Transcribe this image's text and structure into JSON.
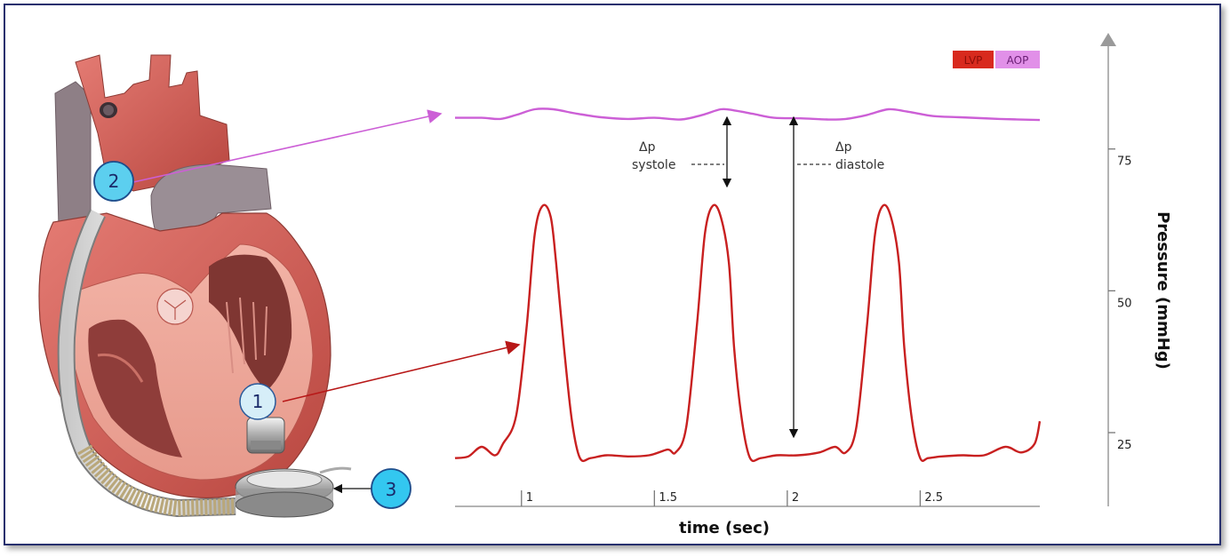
{
  "chart_data": {
    "type": "line",
    "xlabel": "time (sec)",
    "ylabel": "Pressure (mmHg)",
    "x_ticks": [
      1,
      1.5,
      2,
      2.5
    ],
    "y_ticks": [
      25,
      50,
      75
    ],
    "xlim": [
      0.75,
      2.95
    ],
    "ylim": [
      12,
      95
    ],
    "legend": {
      "position": "top-right"
    },
    "series": [
      {
        "name": "LVP",
        "color": "#c82020",
        "x": [
          0.75,
          0.8,
          0.85,
          0.9,
          0.93,
          0.98,
          1.02,
          1.05,
          1.08,
          1.11,
          1.13,
          1.16,
          1.19,
          1.22,
          1.26,
          1.32,
          1.4,
          1.48,
          1.55,
          1.58,
          1.62,
          1.66,
          1.69,
          1.72,
          1.75,
          1.78,
          1.8,
          1.83,
          1.86,
          1.9,
          1.96,
          2.04,
          2.12,
          2.18,
          2.22,
          2.26,
          2.3,
          2.33,
          2.36,
          2.39,
          2.42,
          2.44,
          2.47,
          2.5,
          2.53,
          2.58,
          2.66,
          2.74,
          2.82,
          2.88,
          2.93,
          2.95
        ],
        "y": [
          20.5,
          20.8,
          22.5,
          21,
          23,
          28,
          44,
          60,
          65,
          63,
          55,
          40,
          27,
          20.5,
          20.5,
          21,
          20.8,
          21,
          22,
          21.5,
          26,
          44,
          60,
          65,
          63,
          55,
          40,
          27,
          20.5,
          20.5,
          21,
          21,
          21.5,
          22.5,
          21.5,
          26,
          44,
          60,
          65,
          63,
          55,
          40,
          27,
          20.5,
          20.5,
          20.8,
          21,
          21,
          22.5,
          21.5,
          23,
          27
        ]
      },
      {
        "name": "AOP",
        "color": "#cc5fd6",
        "x": [
          0.75,
          0.85,
          0.92,
          0.98,
          1.05,
          1.12,
          1.2,
          1.3,
          1.4,
          1.5,
          1.6,
          1.68,
          1.75,
          1.8,
          1.87,
          1.95,
          2.05,
          2.15,
          2.22,
          2.3,
          2.38,
          2.45,
          2.55,
          2.65,
          2.8,
          2.95
        ],
        "y": [
          80.5,
          80.5,
          80.3,
          81,
          82,
          82,
          81.3,
          80.6,
          80.3,
          80.5,
          80.2,
          81,
          82,
          81.8,
          81.2,
          80.5,
          80.4,
          80.2,
          80.3,
          81,
          82,
          81.6,
          80.8,
          80.6,
          80.3,
          80.1
        ]
      }
    ],
    "annotations": [
      {
        "symbol": "Δp",
        "label": "systole"
      },
      {
        "symbol": "Δp",
        "label": "diastole"
      }
    ]
  },
  "callouts": [
    {
      "number": "1",
      "target": "LVP"
    },
    {
      "number": "2",
      "target": "AOP"
    },
    {
      "number": "3"
    }
  ]
}
